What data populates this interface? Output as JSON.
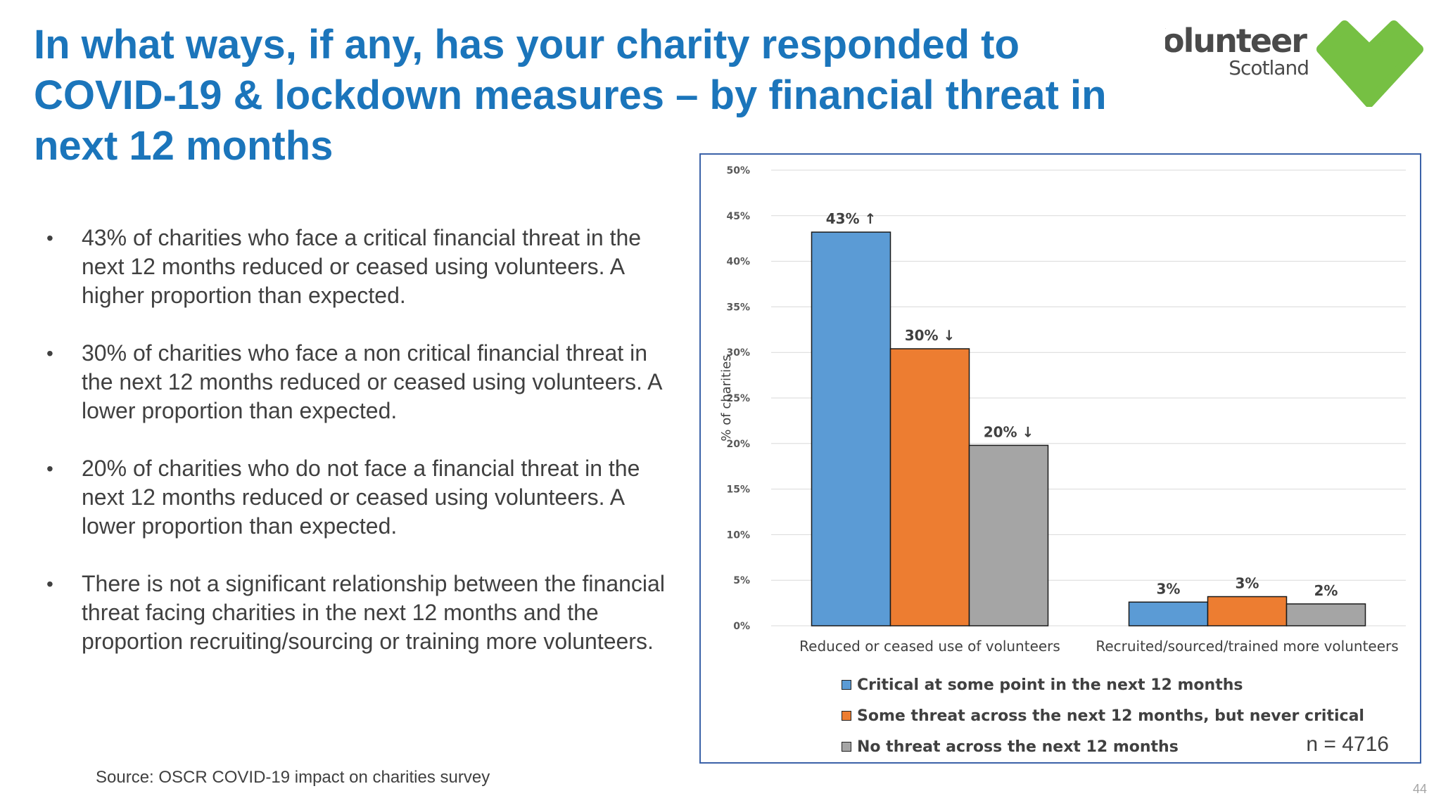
{
  "slide": {
    "title": "In what ways, if any, has your charity responded to COVID-19 & lockdown measures – by financial threat in next 12 months",
    "bullets": [
      "43% of charities who face a critical financial threat in the next 12 months reduced or ceased using volunteers. A higher proportion than expected.",
      "30% of charities who face a non critical financial threat in the next 12 months reduced or ceased using volunteers. A lower proportion than expected.",
      "20% of charities who do not face a financial threat in the next 12 months reduced or ceased using volunteers. A lower proportion than expected.",
      "There is not a significant relationship between the financial threat facing charities in the next 12 months and the proportion recruiting/sourcing or training more volunteers."
    ],
    "source": "Source: OSCR COVID-19 impact on charities survey",
    "page_number": "44",
    "logo": {
      "line1": "Volunteer",
      "line2": "Scotland",
      "heart_color": "#76c043",
      "text_color": "#4a4a4a"
    }
  },
  "chart_data": {
    "type": "bar",
    "categories": [
      "Reduced or ceased use of volunteers",
      "Recruited/sourced/trained more volunteers"
    ],
    "ylabel": "% of charities",
    "ylim": [
      0,
      50
    ],
    "y_ticks": [
      "0%",
      "5%",
      "10%",
      "15%",
      "20%",
      "25%",
      "30%",
      "35%",
      "40%",
      "45%",
      "50%"
    ],
    "grid": true,
    "legend_position": "bottom",
    "series": [
      {
        "name": "Critical at some point in the next 12 months",
        "color": "#5b9bd5",
        "values": [
          43.2,
          2.6
        ],
        "labels": [
          "43% ↑",
          "3%"
        ]
      },
      {
        "name": "Some threat across the next 12 months, but never critical",
        "color": "#ed7d31",
        "values": [
          30.4,
          3.2
        ],
        "labels": [
          "30% ↓",
          "3%"
        ]
      },
      {
        "name": "No threat across the next 12 months",
        "color": "#a5a5a5",
        "values": [
          19.8,
          2.4
        ],
        "labels": [
          "20% ↓",
          "2%"
        ]
      }
    ],
    "annotation": "n = 4716"
  }
}
